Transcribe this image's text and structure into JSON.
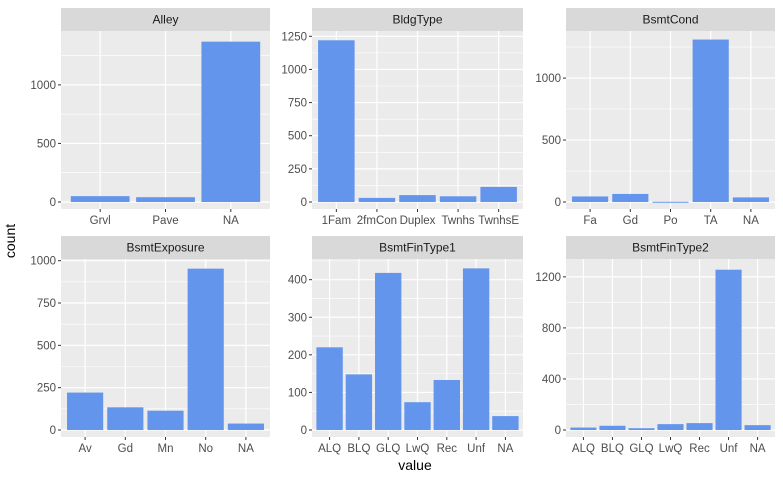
{
  "xlabel": "value",
  "ylabel": "count",
  "colors": {
    "bar": "#6495ED",
    "panel_bg": "#EBEBEB",
    "strip_bg": "#D9D9D9",
    "grid": "#FFFFFF"
  },
  "chart_data": [
    {
      "type": "bar",
      "title": "Alley",
      "categories": [
        "Grvl",
        "Pave",
        "NA"
      ],
      "values": [
        50,
        41,
        1369
      ],
      "ylim": [
        0,
        1460
      ],
      "yticks": [
        0,
        500,
        1000
      ]
    },
    {
      "type": "bar",
      "title": "BldgType",
      "categories": [
        "1Fam",
        "2fmCon",
        "Duplex",
        "Twnhs",
        "TwnhsE"
      ],
      "values": [
        1220,
        31,
        52,
        43,
        114
      ],
      "ylim": [
        0,
        1290
      ],
      "yticks": [
        0,
        250,
        500,
        750,
        1000,
        1250
      ]
    },
    {
      "type": "bar",
      "title": "BsmtCond",
      "categories": [
        "Fa",
        "Gd",
        "Po",
        "TA",
        "NA"
      ],
      "values": [
        45,
        65,
        2,
        1311,
        37
      ],
      "ylim": [
        0,
        1380
      ],
      "yticks": [
        0,
        500,
        1000
      ]
    },
    {
      "type": "bar",
      "title": "BsmtExposure",
      "categories": [
        "Av",
        "Gd",
        "Mn",
        "No",
        "NA"
      ],
      "values": [
        221,
        134,
        114,
        953,
        38
      ],
      "ylim": [
        0,
        1010
      ],
      "yticks": [
        0,
        250,
        500,
        750,
        1000
      ]
    },
    {
      "type": "bar",
      "title": "BsmtFinType1",
      "categories": [
        "ALQ",
        "BLQ",
        "GLQ",
        "LwQ",
        "Rec",
        "Unf",
        "NA"
      ],
      "values": [
        220,
        148,
        418,
        74,
        133,
        430,
        37
      ],
      "ylim": [
        0,
        455
      ],
      "yticks": [
        0,
        100,
        200,
        300,
        400
      ]
    },
    {
      "type": "bar",
      "title": "BsmtFinType2",
      "categories": [
        "ALQ",
        "BLQ",
        "GLQ",
        "LwQ",
        "Rec",
        "Unf",
        "NA"
      ],
      "values": [
        19,
        33,
        14,
        46,
        54,
        1256,
        38
      ],
      "ylim": [
        0,
        1340
      ],
      "yticks": [
        0,
        400,
        800,
        1200
      ]
    }
  ]
}
